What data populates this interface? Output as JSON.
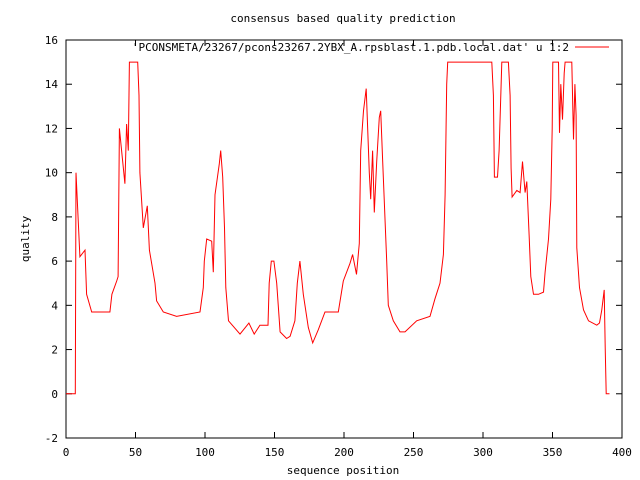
{
  "chart_data": {
    "type": "line",
    "title": "consensus based quality prediction",
    "xlabel": "sequence position",
    "ylabel": "quality",
    "xlim": [
      0,
      400
    ],
    "ylim": [
      -2,
      16
    ],
    "xticks": [
      0,
      50,
      100,
      150,
      200,
      250,
      300,
      350,
      400
    ],
    "yticks": [
      -2,
      0,
      2,
      4,
      6,
      8,
      10,
      12,
      14,
      16
    ],
    "grid": false,
    "legend_position": "top-right",
    "series": [
      {
        "name": "'PCONSMETA/23267/pcons23267.2YBX_A.rpsblast.1.pdb.local.dat' u 1:2",
        "color": "#ff0000",
        "x": [
          0,
          6.7,
          7.2,
          10,
          13.7,
          14.8,
          18.5,
          31.6,
          33,
          36.5,
          37.5,
          38.4,
          40,
          42.4,
          43.6,
          44.8,
          45.6,
          51.6,
          52.5,
          53.2,
          55.6,
          58.5,
          60,
          64,
          65.2,
          70,
          79.6,
          96.4,
          98.8,
          99.5,
          101.2,
          104.8,
          106,
          107.2,
          110.3,
          111.3,
          112.7,
          114,
          115,
          116.9,
          125.2,
          131.6,
          135.4,
          139.5,
          145.3,
          146.2,
          147.7,
          149.6,
          151.6,
          154,
          158.7,
          161.2,
          164.7,
          166.4,
          168.3,
          170.7,
          174.3,
          177.5,
          181.5,
          186.3,
          190,
          195.9,
          199.5,
          204.3,
          206.2,
          209,
          211,
          212,
          214,
          216,
          218.2,
          219.2,
          220.6,
          221.8,
          223.5,
          225.4,
          226.4,
          227.8,
          230.7,
          231.9,
          235.5,
          240.3,
          243.9,
          252.3,
          261.9,
          265.5,
          269.1,
          271.5,
          272.7,
          273.9,
          274.6,
          306.3,
          307.5,
          308.2,
          310.4,
          311.6,
          312.8,
          313.5,
          318.3,
          319.5,
          320.2,
          320.9,
          324.3,
          326.7,
          328.4,
          330.3,
          331.5,
          333.2,
          334.4,
          336.3,
          339.9,
          343.5,
          344.7,
          347.1,
          348.8,
          349.8,
          350.2,
          354.3,
          355,
          356,
          357.2,
          358.4,
          359.1,
          363.9,
          365.1,
          366.1,
          367,
          367.5,
          369.4,
          372.3,
          375.9,
          381.9,
          383.8,
          385.5,
          387.2,
          387.9,
          388.6,
          391
        ],
        "y": [
          0,
          0,
          10,
          6.2,
          6.5,
          4.5,
          3.7,
          3.7,
          4.5,
          5.1,
          5.3,
          12,
          11,
          9.5,
          12.2,
          11,
          15,
          15,
          13.5,
          10,
          7.5,
          8.5,
          6.5,
          5,
          4.2,
          3.7,
          3.5,
          3.7,
          4.8,
          6,
          7,
          6.9,
          5.5,
          9,
          10.4,
          11,
          9.8,
          7.5,
          4.8,
          3.3,
          2.7,
          3.2,
          2.7,
          3.1,
          3.1,
          5,
          6,
          6,
          5,
          2.8,
          2.5,
          2.6,
          3.3,
          5,
          6,
          4.5,
          3,
          2.3,
          2.9,
          3.7,
          3.7,
          3.7,
          5.1,
          5.9,
          6.3,
          5.4,
          6.8,
          11,
          12.8,
          13.8,
          10,
          8.8,
          11,
          8.2,
          10.5,
          12.5,
          12.8,
          10.6,
          6,
          4,
          3.3,
          2.8,
          2.8,
          3.3,
          3.5,
          4.3,
          5,
          6.3,
          9,
          14,
          15,
          15,
          13.5,
          9.8,
          9.8,
          11,
          13.5,
          15,
          15,
          13.5,
          10.2,
          8.9,
          9.2,
          9.1,
          10.5,
          9.1,
          9.6,
          7.2,
          5.3,
          4.5,
          4.5,
          4.6,
          5.5,
          7,
          8.8,
          12,
          15,
          15,
          11.8,
          14,
          12.4,
          14.5,
          15,
          15,
          11.5,
          14,
          12.6,
          6.6,
          4.8,
          3.8,
          3.3,
          3.1,
          3.2,
          3.8,
          4.7,
          2.1,
          0,
          0
        ]
      }
    ]
  }
}
